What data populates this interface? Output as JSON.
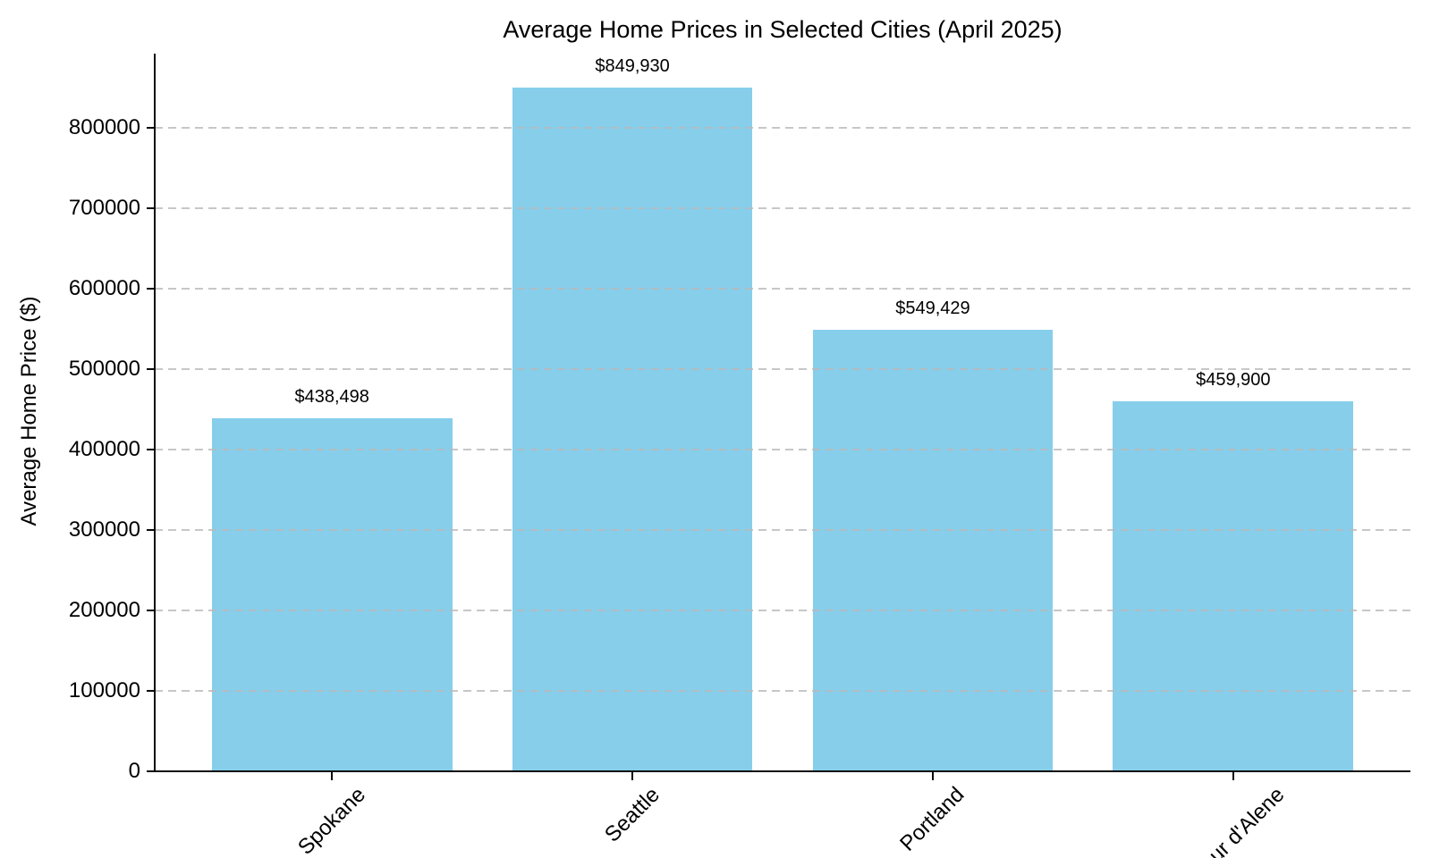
{
  "page": {
    "background": "#ffffff"
  },
  "chart_data": {
    "type": "bar",
    "title": "Average Home Prices in Selected Cities (April 2025)",
    "xlabel": "",
    "ylabel": "Average Home Price ($)",
    "categories": [
      "Spokane",
      "Seattle",
      "Portland",
      "Coeur d'Alene"
    ],
    "values": [
      438498,
      849930,
      549429,
      459900
    ],
    "value_labels": [
      "$438,498",
      "$849,930",
      "$549,429",
      "$459,900"
    ],
    "ylim": [
      0,
      892426
    ],
    "yticks": [
      0,
      100000,
      200000,
      300000,
      400000,
      500000,
      600000,
      700000,
      800000
    ],
    "ytick_labels": [
      "0",
      "100000",
      "200000",
      "300000",
      "400000",
      "500000",
      "600000",
      "700000",
      "800000"
    ],
    "bar_color": "#87CEEB",
    "grid_color": "#b9b9b9",
    "grid_style": "dashed",
    "grid_axis": "y",
    "legend_position": "none",
    "x_tick_rotation": 45,
    "bar_width_fraction": 0.8
  }
}
